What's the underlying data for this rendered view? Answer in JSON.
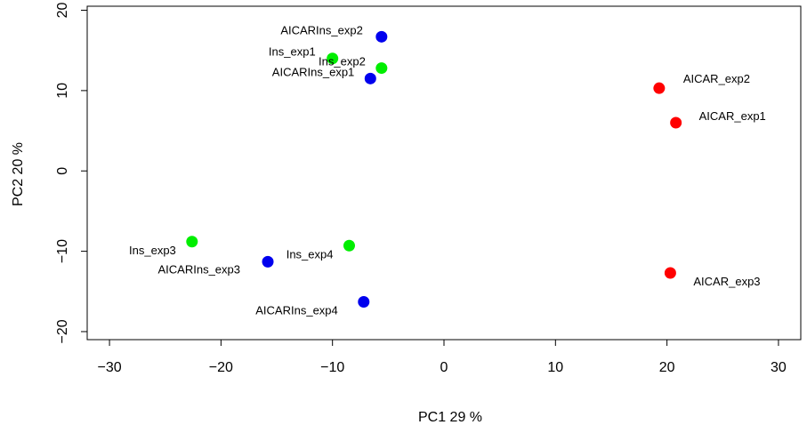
{
  "chart_data": {
    "type": "scatter",
    "xlabel": "PC1 29 %",
    "ylabel": "PC2 20 %",
    "xlim": [
      -32,
      32
    ],
    "ylim": [
      -21,
      20.5
    ],
    "xticks": [
      -30,
      -20,
      -10,
      0,
      10,
      20,
      30
    ],
    "yticks": [
      -20,
      -10,
      0,
      10,
      20
    ],
    "grid": false,
    "groups": {
      "AICAR": "#ff0000",
      "Ins": "#00ee00",
      "AICARIns": "#0000ee"
    },
    "points": [
      {
        "label": "AICAR_exp1",
        "group": "AICAR",
        "x": 20.8,
        "y": 6.0
      },
      {
        "label": "AICAR_exp2",
        "group": "AICAR",
        "x": 19.3,
        "y": 10.3
      },
      {
        "label": "AICAR_exp3",
        "group": "AICAR",
        "x": 20.3,
        "y": -12.7
      },
      {
        "label": "Ins_exp1",
        "group": "Ins",
        "x": -10.0,
        "y": 14.0
      },
      {
        "label": "Ins_exp2",
        "group": "Ins",
        "x": -5.6,
        "y": 12.8
      },
      {
        "label": "Ins_exp3",
        "group": "Ins",
        "x": -22.6,
        "y": -8.8
      },
      {
        "label": "Ins_exp4",
        "group": "Ins",
        "x": -8.5,
        "y": -9.3
      },
      {
        "label": "AICARIns_exp1",
        "group": "AICARIns",
        "x": -6.6,
        "y": 11.5
      },
      {
        "label": "AICARIns_exp2",
        "group": "AICARIns",
        "x": -5.6,
        "y": 16.7
      },
      {
        "label": "AICARIns_exp3",
        "group": "AICARIns",
        "x": -15.8,
        "y": -11.3
      },
      {
        "label": "AICARIns_exp4",
        "group": "AICARIns",
        "x": -7.2,
        "y": -16.3
      }
    ]
  }
}
